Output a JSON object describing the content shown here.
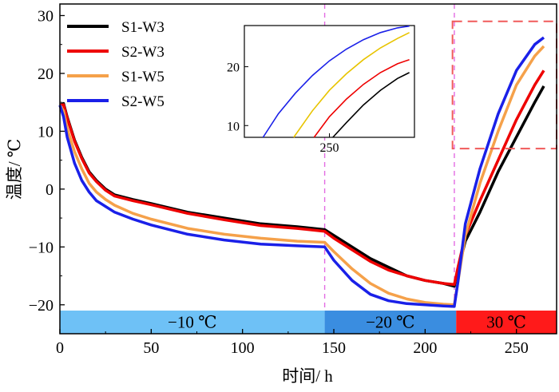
{
  "chart_data": {
    "type": "line",
    "xlabel": "时间/ h",
    "ylabel": "温度/ ℃",
    "xlim": [
      0,
      272
    ],
    "ylim": [
      -25,
      32
    ],
    "xticks": [
      0,
      50,
      100,
      150,
      200,
      250
    ],
    "yticks": [
      -20,
      -10,
      0,
      10,
      20,
      30
    ],
    "vlines": [
      145,
      216
    ],
    "phases": [
      {
        "label": "−10 ℃",
        "x0": 0,
        "x1": 145,
        "color": "#6ec1f6"
      },
      {
        "label": "−20 ℃",
        "x0": 145,
        "x1": 217,
        "color": "#3a8de0"
      },
      {
        "label": "30 ℃",
        "x0": 217,
        "x1": 272,
        "color": "#ff1a1a"
      }
    ],
    "phase_band_y": [
      -25,
      -21
    ],
    "zoom_box": {
      "x": [
        215,
        272
      ],
      "y": [
        7,
        29
      ]
    },
    "series": [
      {
        "name": "S1-W3",
        "color": "#000000",
        "points": [
          [
            0,
            14.5
          ],
          [
            2,
            14.8
          ],
          [
            4,
            12.5
          ],
          [
            8,
            8.5
          ],
          [
            12,
            5.5
          ],
          [
            16,
            3
          ],
          [
            20,
            1.5
          ],
          [
            25,
            0
          ],
          [
            30,
            -1
          ],
          [
            40,
            -1.8
          ],
          [
            50,
            -2.5
          ],
          [
            70,
            -4
          ],
          [
            90,
            -5
          ],
          [
            110,
            -6
          ],
          [
            130,
            -6.5
          ],
          [
            145,
            -7
          ],
          [
            150,
            -8
          ],
          [
            160,
            -10
          ],
          [
            170,
            -12
          ],
          [
            180,
            -13.5
          ],
          [
            190,
            -15
          ],
          [
            200,
            -15.8
          ],
          [
            210,
            -16.3
          ],
          [
            216,
            -16.8
          ],
          [
            218,
            -14
          ],
          [
            222,
            -9
          ],
          [
            230,
            -4
          ],
          [
            240,
            3
          ],
          [
            250,
            9
          ],
          [
            260,
            15
          ],
          [
            265,
            17.8
          ]
        ]
      },
      {
        "name": "S2-W3",
        "color": "#ee0000",
        "points": [
          [
            0,
            14.5
          ],
          [
            2,
            14.6
          ],
          [
            4,
            12.3
          ],
          [
            8,
            8.3
          ],
          [
            12,
            5.3
          ],
          [
            16,
            2.8
          ],
          [
            20,
            1.3
          ],
          [
            25,
            -0.2
          ],
          [
            30,
            -1.2
          ],
          [
            40,
            -2
          ],
          [
            50,
            -2.7
          ],
          [
            70,
            -4.2
          ],
          [
            90,
            -5.3
          ],
          [
            110,
            -6.3
          ],
          [
            130,
            -6.8
          ],
          [
            145,
            -7.3
          ],
          [
            150,
            -8.5
          ],
          [
            160,
            -10.5
          ],
          [
            170,
            -12.5
          ],
          [
            180,
            -14
          ],
          [
            190,
            -15
          ],
          [
            200,
            -15.8
          ],
          [
            210,
            -16.3
          ],
          [
            216,
            -16.5
          ],
          [
            218,
            -13.5
          ],
          [
            222,
            -8
          ],
          [
            230,
            -2
          ],
          [
            240,
            5
          ],
          [
            250,
            12
          ],
          [
            260,
            18
          ],
          [
            265,
            20.5
          ]
        ]
      },
      {
        "name": "S1-W5",
        "color": "#f5a14a",
        "points": [
          [
            0,
            14.5
          ],
          [
            2,
            13.5
          ],
          [
            4,
            10.5
          ],
          [
            8,
            6.5
          ],
          [
            12,
            3.5
          ],
          [
            16,
            1
          ],
          [
            20,
            -0.5
          ],
          [
            25,
            -1.8
          ],
          [
            30,
            -2.8
          ],
          [
            40,
            -4.2
          ],
          [
            50,
            -5.2
          ],
          [
            70,
            -6.8
          ],
          [
            90,
            -7.8
          ],
          [
            110,
            -8.5
          ],
          [
            130,
            -9
          ],
          [
            145,
            -9.2
          ],
          [
            150,
            -10.8
          ],
          [
            160,
            -13.8
          ],
          [
            170,
            -16.3
          ],
          [
            180,
            -18
          ],
          [
            190,
            -19
          ],
          [
            200,
            -19.6
          ],
          [
            210,
            -19.9
          ],
          [
            216,
            -20
          ],
          [
            218,
            -16
          ],
          [
            222,
            -8
          ],
          [
            230,
            1
          ],
          [
            240,
            10
          ],
          [
            250,
            18
          ],
          [
            260,
            23
          ],
          [
            265,
            24.7
          ]
        ]
      },
      {
        "name": "S2-W5",
        "color": "#1a20e8",
        "points": [
          [
            0,
            14.5
          ],
          [
            2,
            12.5
          ],
          [
            4,
            9
          ],
          [
            8,
            4.5
          ],
          [
            12,
            1.5
          ],
          [
            16,
            -0.5
          ],
          [
            20,
            -2
          ],
          [
            25,
            -3
          ],
          [
            30,
            -4
          ],
          [
            40,
            -5.2
          ],
          [
            50,
            -6.2
          ],
          [
            70,
            -7.8
          ],
          [
            90,
            -8.8
          ],
          [
            110,
            -9.5
          ],
          [
            130,
            -9.8
          ],
          [
            145,
            -10
          ],
          [
            150,
            -12.3
          ],
          [
            160,
            -15.8
          ],
          [
            170,
            -18.2
          ],
          [
            180,
            -19.3
          ],
          [
            190,
            -19.8
          ],
          [
            200,
            -20
          ],
          [
            210,
            -20.2
          ],
          [
            216,
            -20.3
          ],
          [
            218,
            -16
          ],
          [
            222,
            -6
          ],
          [
            230,
            3.5
          ],
          [
            240,
            13
          ],
          [
            250,
            20.5
          ],
          [
            260,
            25
          ],
          [
            265,
            26.2
          ]
        ]
      }
    ],
    "inset": {
      "xlim": [
        200,
        300
      ],
      "ylim": [
        8,
        27
      ],
      "xticks": [
        250
      ],
      "yticks": [
        10,
        20
      ],
      "series": [
        {
          "name": "S1-W3",
          "color": "#000000",
          "points": [
            [
              252,
              8
            ],
            [
              260,
              10.5
            ],
            [
              270,
              13.5
            ],
            [
              280,
              16
            ],
            [
              290,
              18
            ],
            [
              297,
              19
            ]
          ]
        },
        {
          "name": "S2-W3",
          "color": "#ee0000",
          "points": [
            [
              241,
              8
            ],
            [
              250,
              11.5
            ],
            [
              260,
              14.5
            ],
            [
              270,
              17
            ],
            [
              280,
              19
            ],
            [
              290,
              20.5
            ],
            [
              297,
              21.2
            ]
          ]
        },
        {
          "name": "S1-W5",
          "color": "#e8c400",
          "points": [
            [
              229,
              8
            ],
            [
              240,
              12.5
            ],
            [
              250,
              16
            ],
            [
              260,
              18.8
            ],
            [
              270,
              21.2
            ],
            [
              280,
              23.2
            ],
            [
              290,
              24.8
            ],
            [
              297,
              25.8
            ]
          ]
        },
        {
          "name": "S2-W5",
          "color": "#1a20e8",
          "points": [
            [
              211,
              8
            ],
            [
              220,
              12
            ],
            [
              230,
              15.5
            ],
            [
              240,
              18.5
            ],
            [
              250,
              21
            ],
            [
              260,
              23
            ],
            [
              270,
              24.6
            ],
            [
              280,
              25.8
            ],
            [
              290,
              26.6
            ],
            [
              297,
              26.9
            ]
          ]
        }
      ]
    }
  }
}
